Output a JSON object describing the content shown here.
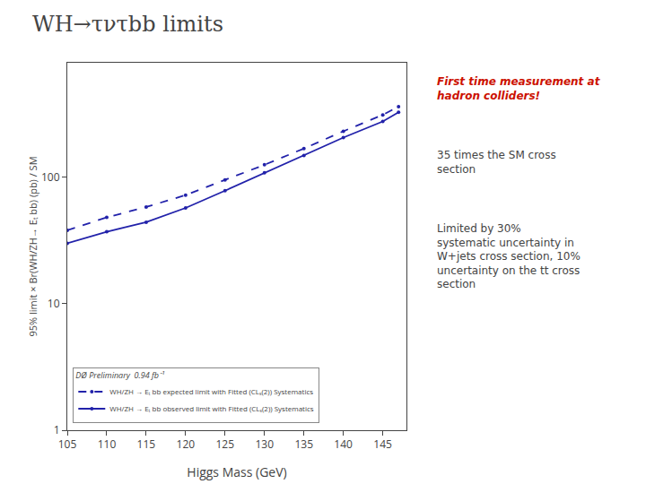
{
  "chart_data": {
    "type": "line",
    "title": "WH→τντbb limits",
    "x_label": "Higgs Mass (GeV)",
    "y_label": "95% limit × Br(WH/ZH→ Eₜ bb) (pb) / SM",
    "x": [
      105,
      110,
      115,
      120,
      125,
      130,
      135,
      140,
      145,
      147
    ],
    "series": [
      {
        "name": "WH/ZH → Eₜ bb expected limit with Fitted (CLₛ(2)) Systematics",
        "color": "#2222aa",
        "line_style": "dashed",
        "marker": "dot",
        "values": [
          38,
          48,
          58,
          72,
          95,
          125,
          168,
          230,
          310,
          360
        ]
      },
      {
        "name": "WH/ZH → Eₜ bb observed limit with Fitted (CLₛ(2)) Systematics",
        "color": "#2222aa",
        "line_style": "solid",
        "marker": "dot",
        "values": [
          30,
          37,
          44,
          57,
          78,
          108,
          148,
          205,
          275,
          325
        ]
      }
    ],
    "legend_title": "DØ Preliminary  0.94 fb⁻¹",
    "annotations": [
      {
        "text": "First time measurement at\nhadron colliders!",
        "color": "#cc1100"
      },
      {
        "text": "35 times the SM cross\nsection"
      },
      {
        "text": "Limited by 30%\nsystematic uncertainty in\nW+jets cross section, 10%\nuncertainty on the tt cross\nsection"
      }
    ],
    "log": "y",
    "xlim": [
      105,
      148
    ],
    "xticks": [
      105,
      110,
      115,
      120,
      125,
      130,
      135,
      140,
      145
    ],
    "ylim": [
      1,
      800
    ],
    "yticks": [
      1,
      10,
      100
    ],
    "grid": false,
    "legend": "lower left"
  }
}
